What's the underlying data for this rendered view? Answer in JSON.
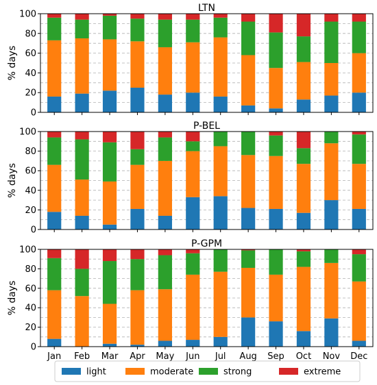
{
  "chart_data": [
    {
      "type": "bar",
      "stacked": true,
      "title": "LTN",
      "ylabel": "% days",
      "ylim": [
        0,
        100
      ],
      "yticks": [
        0,
        20,
        40,
        60,
        80,
        100
      ],
      "grid": "horizontal dashed",
      "categories": [
        "Jan",
        "Feb",
        "Mar",
        "Apr",
        "May",
        "Jun",
        "Jul",
        "Aug",
        "Sep",
        "Oct",
        "Nov",
        "Dec"
      ],
      "series": [
        {
          "name": "light",
          "values": [
            16,
            19,
            22,
            25,
            18,
            20,
            16,
            7,
            4,
            13,
            17,
            20
          ]
        },
        {
          "name": "moderate",
          "values": [
            57,
            56,
            52,
            47,
            48,
            51,
            60,
            51,
            41,
            38,
            33,
            40
          ]
        },
        {
          "name": "strong",
          "values": [
            23,
            19,
            24,
            23,
            28,
            23,
            20,
            34,
            36,
            26,
            42,
            32
          ]
        },
        {
          "name": "extreme",
          "values": [
            4,
            6,
            2,
            5,
            6,
            6,
            4,
            8,
            19,
            23,
            8,
            8
          ]
        }
      ]
    },
    {
      "type": "bar",
      "stacked": true,
      "title": "P-BEL",
      "ylabel": "% days",
      "ylim": [
        0,
        100
      ],
      "yticks": [
        0,
        20,
        40,
        60,
        80,
        100
      ],
      "grid": "horizontal dashed",
      "categories": [
        "Jan",
        "Feb",
        "Mar",
        "Apr",
        "May",
        "Jun",
        "Jul",
        "Aug",
        "Sep",
        "Oct",
        "Nov",
        "Dec"
      ],
      "series": [
        {
          "name": "light",
          "values": [
            18,
            14,
            5,
            21,
            14,
            33,
            34,
            22,
            21,
            17,
            30,
            21
          ]
        },
        {
          "name": "moderate",
          "values": [
            48,
            37,
            44,
            45,
            56,
            47,
            51,
            54,
            54,
            50,
            58,
            46
          ]
        },
        {
          "name": "strong",
          "values": [
            28,
            41,
            40,
            16,
            24,
            10,
            15,
            24,
            21,
            16,
            12,
            30
          ]
        },
        {
          "name": "extreme",
          "values": [
            6,
            8,
            11,
            18,
            6,
            10,
            0,
            0,
            4,
            17,
            0,
            3
          ]
        }
      ]
    },
    {
      "type": "bar",
      "stacked": true,
      "title": "P-GPM",
      "ylabel": "% days",
      "ylim": [
        0,
        100
      ],
      "yticks": [
        0,
        20,
        40,
        60,
        80,
        100
      ],
      "grid": "horizontal dashed",
      "categories": [
        "Jan",
        "Feb",
        "Mar",
        "Apr",
        "May",
        "Jun",
        "Jul",
        "Aug",
        "Sep",
        "Oct",
        "Nov",
        "Dec"
      ],
      "series": [
        {
          "name": "light",
          "values": [
            8,
            0,
            3,
            2,
            6,
            7,
            10,
            30,
            26,
            16,
            29,
            6
          ]
        },
        {
          "name": "moderate",
          "values": [
            50,
            52,
            41,
            56,
            53,
            67,
            67,
            51,
            48,
            66,
            57,
            61
          ]
        },
        {
          "name": "strong",
          "values": [
            33,
            28,
            44,
            32,
            35,
            22,
            23,
            18,
            26,
            16,
            14,
            28
          ]
        },
        {
          "name": "extreme",
          "values": [
            9,
            20,
            12,
            10,
            6,
            4,
            0,
            1,
            0,
            2,
            0,
            5
          ]
        }
      ]
    }
  ],
  "legend": {
    "placement": "bottom-center",
    "entries": [
      {
        "label": "light",
        "color": "#1f77b4"
      },
      {
        "label": "moderate",
        "color": "#ff7f0e"
      },
      {
        "label": "strong",
        "color": "#2ca02c"
      },
      {
        "label": "extreme",
        "color": "#d62728"
      }
    ]
  }
}
